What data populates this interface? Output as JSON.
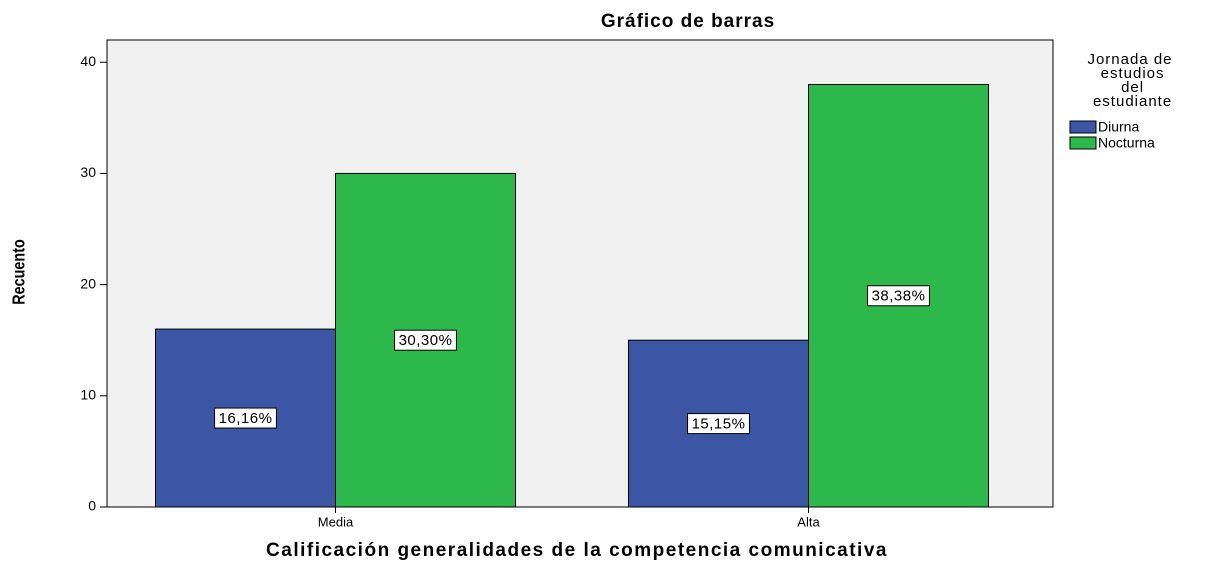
{
  "chart_data": {
    "type": "bar",
    "title": "Gráfico de barras",
    "x_label": "Calificación generalidades de la competencia comunicativa",
    "y_label": "Recuento",
    "legend_title": "Jornada de estudios del estudiante",
    "legend": "right",
    "categories": [
      "Media",
      "Alta"
    ],
    "series": [
      {
        "name": "Diurna",
        "color": "#3c56a6",
        "values": [
          16,
          15
        ],
        "percent_labels": [
          "16,16%",
          "15,15%"
        ]
      },
      {
        "name": "Nocturna",
        "color": "#2db84b",
        "values": [
          30,
          38
        ],
        "percent_labels": [
          "30,30%",
          "38,38%"
        ]
      }
    ],
    "ylim": [
      0,
      42
    ],
    "yticks": [
      0,
      10,
      20,
      30,
      40
    ],
    "grid": false
  }
}
